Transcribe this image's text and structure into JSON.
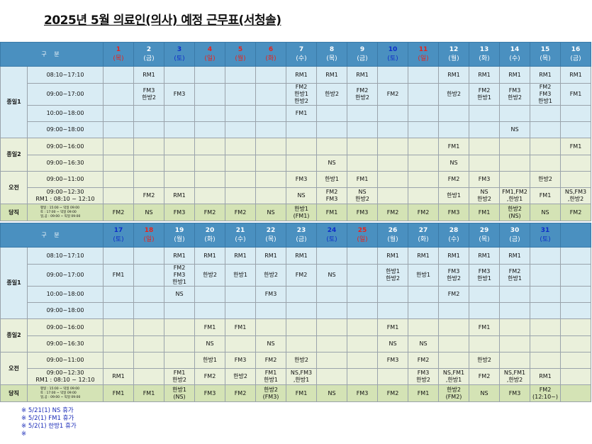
{
  "title": "2025년 5월  의료인(의사) 예정 근무표(서청솔)",
  "header_label": "구  분",
  "groups": [
    "종일1",
    "종일2",
    "오전",
    "당직"
  ],
  "times": [
    "08:10~17:10",
    "09:00~17:00",
    "10:00~18:00",
    "09:00~18:00",
    "09:00~16:00",
    "09:00~16:30",
    "09:00~11:00",
    "09:00~12:30"
  ],
  "rm1_note": "RM1 : 08:10 ~ 12:10",
  "dang_note": [
    "평일 : 15:00 ~ 익일 09:00",
    "토    : 17:00 ~ 익일 09:00",
    "일,공 : 09:00 ~ 익일 09:00"
  ],
  "colors": {
    "header_bg": "#4a90c0",
    "group1_bg": "#d9ecf4",
    "group2_bg": "#eaf0db",
    "duty_bg": "#d4e3b5",
    "holiday_red": "#e8231b",
    "saturday_blue": "#0d2ec8"
  },
  "weeks": [
    {
      "days": [
        {
          "d": "1",
          "w": "(목)",
          "c": "red"
        },
        {
          "d": "2",
          "w": "(금)",
          "c": ""
        },
        {
          "d": "3",
          "w": "(토)",
          "c": "blue"
        },
        {
          "d": "4",
          "w": "(일)",
          "c": "red"
        },
        {
          "d": "5",
          "w": "(월)",
          "c": "red"
        },
        {
          "d": "6",
          "w": "(화)",
          "c": "red"
        },
        {
          "d": "7",
          "w": "(수)",
          "c": ""
        },
        {
          "d": "8",
          "w": "(목)",
          "c": ""
        },
        {
          "d": "9",
          "w": "(금)",
          "c": ""
        },
        {
          "d": "10",
          "w": "(토)",
          "c": "blue"
        },
        {
          "d": "11",
          "w": "(일)",
          "c": "red"
        },
        {
          "d": "12",
          "w": "(월)",
          "c": ""
        },
        {
          "d": "13",
          "w": "(화)",
          "c": ""
        },
        {
          "d": "14",
          "w": "(수)",
          "c": ""
        },
        {
          "d": "15",
          "w": "(목)",
          "c": ""
        },
        {
          "d": "16",
          "w": "(금)",
          "c": ""
        }
      ],
      "rows": [
        [
          "",
          "RM1",
          "",
          "",
          "",
          "",
          "RM1",
          "RM1",
          "RM1",
          "",
          "",
          "RM1",
          "RM1",
          "RM1",
          "RM1",
          "RM1"
        ],
        [
          "",
          "FM3\n한방2",
          "FM3",
          "",
          "",
          "",
          "FM2\n한방1\n한방2",
          "한방2",
          "FM2\n한방2",
          "FM2",
          "",
          "한방2",
          "FM2\n한방1",
          "FM3\n한방2",
          "FM2\nFM3\n한방1",
          "FM1"
        ],
        [
          "",
          "",
          "",
          "",
          "",
          "",
          "FM1",
          "",
          "",
          "",
          "",
          "",
          "",
          "",
          "",
          ""
        ],
        [
          "",
          "",
          "",
          "",
          "",
          "",
          "",
          "",
          "",
          "",
          "",
          "",
          "",
          "NS",
          "",
          ""
        ],
        [
          "",
          "",
          "",
          "",
          "",
          "",
          "",
          "",
          "",
          "",
          "",
          "FM1",
          "",
          "",
          "",
          "FM1"
        ],
        [
          "",
          "",
          "",
          "",
          "",
          "",
          "",
          "NS",
          "",
          "",
          "",
          "NS",
          "",
          "",
          "",
          ""
        ],
        [
          "",
          "",
          "",
          "",
          "",
          "",
          "FM3",
          "한방1",
          "FM1",
          "",
          "",
          "FM2",
          "FM3",
          "",
          "한방2",
          ""
        ],
        [
          "",
          "FM2",
          "RM1",
          "",
          "",
          "",
          "NS",
          "FM2\nFM3",
          "NS\n한방2",
          "",
          "",
          "한방1",
          "NS\n한방2",
          "FM1,FM2\n,한방1",
          "FM1",
          "NS,FM3\n,한방2"
        ],
        [
          "FM2",
          "NS",
          "FM3",
          "FM2",
          "FM2",
          "NS",
          "한방1\n(FM1)",
          "FM1",
          "FM3",
          "FM2",
          "FM2",
          "FM3",
          "FM1",
          "한방2\n(NS)",
          "NS",
          "FM2"
        ]
      ]
    },
    {
      "days": [
        {
          "d": "17",
          "w": "(토)",
          "c": "blue"
        },
        {
          "d": "18",
          "w": "(일)",
          "c": "red"
        },
        {
          "d": "19",
          "w": "(월)",
          "c": ""
        },
        {
          "d": "20",
          "w": "(화)",
          "c": ""
        },
        {
          "d": "21",
          "w": "(수)",
          "c": ""
        },
        {
          "d": "22",
          "w": "(목)",
          "c": ""
        },
        {
          "d": "23",
          "w": "(금)",
          "c": ""
        },
        {
          "d": "24",
          "w": "(토)",
          "c": "blue"
        },
        {
          "d": "25",
          "w": "(일)",
          "c": "red"
        },
        {
          "d": "26",
          "w": "(월)",
          "c": ""
        },
        {
          "d": "27",
          "w": "(화)",
          "c": ""
        },
        {
          "d": "28",
          "w": "(수)",
          "c": ""
        },
        {
          "d": "29",
          "w": "(목)",
          "c": ""
        },
        {
          "d": "30",
          "w": "(금)",
          "c": ""
        },
        {
          "d": "31",
          "w": "(토)",
          "c": "blue"
        },
        {
          "d": "",
          "w": "",
          "c": ""
        }
      ],
      "rows": [
        [
          "",
          "",
          "RM1",
          "RM1",
          "RM1",
          "RM1",
          "RM1",
          "",
          "",
          "RM1",
          "RM1",
          "RM1",
          "RM1",
          "RM1",
          "",
          ""
        ],
        [
          "FM1",
          "",
          "FM2\nFM3\n한방1",
          "한방2",
          "한방1",
          "한방2",
          "FM2",
          "NS",
          "",
          "한방1\n한방2",
          "한방1",
          "FM3\n한방2",
          "FM3\n한방1",
          "FM2\n한방1",
          "",
          ""
        ],
        [
          "",
          "",
          "NS",
          "",
          "",
          "FM3",
          "",
          "",
          "",
          "",
          "",
          "FM2",
          "",
          "",
          "",
          ""
        ],
        [
          "",
          "",
          "",
          "",
          "",
          "",
          "",
          "",
          "",
          "",
          "",
          "",
          "",
          "",
          "",
          ""
        ],
        [
          "",
          "",
          "",
          "FM1",
          "FM1",
          "",
          "",
          "",
          "",
          "FM1",
          "",
          "",
          "FM1",
          "",
          "",
          ""
        ],
        [
          "",
          "",
          "",
          "NS",
          "",
          "NS",
          "",
          "",
          "",
          "NS",
          "NS",
          "",
          "",
          "",
          "",
          ""
        ],
        [
          "",
          "",
          "",
          "한방1",
          "FM3",
          "FM2",
          "한방2",
          "",
          "",
          "FM3",
          "FM2",
          "",
          "한방2",
          "",
          "",
          ""
        ],
        [
          "RM1",
          "",
          "FM1\n한방2",
          "FM2",
          "한방2",
          "FM1\n한방1",
          "NS,FM3\n,한방1",
          "",
          "",
          "",
          "FM3\n한방2",
          "NS,FM1\n,한방1",
          "FM2",
          "NS,FM1\n,한방2",
          "RM1",
          ""
        ],
        [
          "FM1",
          "FM1",
          "한방1\n(NS)",
          "FM3",
          "FM2",
          "한방2\n(FM3)",
          "FM1",
          "NS",
          "FM3",
          "FM2",
          "FM1",
          "한방2\n(FM2)",
          "NS",
          "FM3",
          "FM2\n(12:10~)",
          ""
        ]
      ]
    }
  ],
  "footnotes": [
    "※ 5/21(1) NS 휴가",
    "※ 5/2(1) FM1 휴가",
    "※ 5/2(1) 한방1 휴가",
    "※"
  ]
}
